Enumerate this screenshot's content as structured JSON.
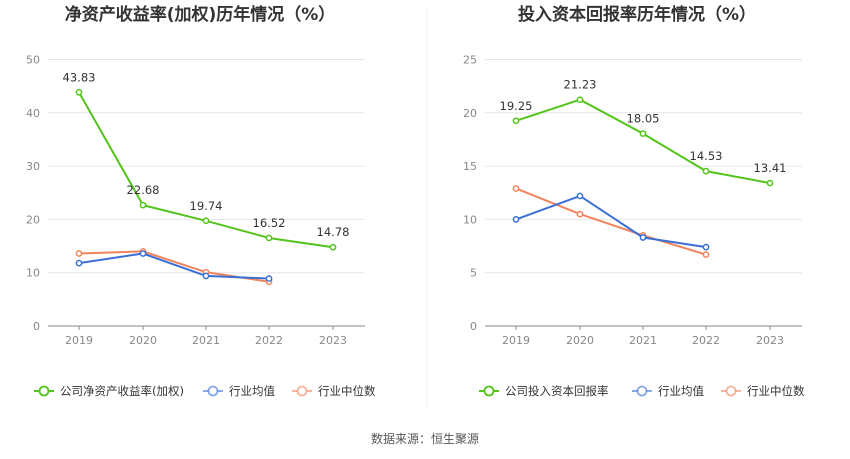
{
  "colors": {
    "company": "#52C41A",
    "avg": "#3B6FD6",
    "median": "#F0845C",
    "grid": "#E6E6E6",
    "axis": "#888888"
  },
  "chart_data": [
    {
      "type": "line",
      "title": "净资产收益率(加权)历年情况（%）",
      "categories": [
        "2019",
        "2020",
        "2021",
        "2022",
        "2023"
      ],
      "ylim": [
        0,
        50
      ],
      "yticks": [
        0,
        10,
        20,
        30,
        40,
        50
      ],
      "series": [
        {
          "name": "公司净资产收益率(加权)",
          "key": "company",
          "values": [
            43.83,
            22.68,
            19.74,
            16.52,
            14.78
          ],
          "labels": [
            "43.83",
            "22.68",
            "19.74",
            "16.52",
            "14.78"
          ]
        },
        {
          "name": "行业均值",
          "key": "avg",
          "values": [
            11.8,
            13.6,
            9.4,
            8.9,
            null
          ]
        },
        {
          "name": "行业中位数",
          "key": "median",
          "values": [
            13.6,
            14.0,
            10.1,
            8.3,
            null
          ]
        }
      ]
    },
    {
      "type": "line",
      "title": "投入资本回报率历年情况（%）",
      "categories": [
        "2019",
        "2020",
        "2021",
        "2022",
        "2023"
      ],
      "ylim": [
        0,
        25
      ],
      "yticks": [
        0,
        5,
        10,
        15,
        20,
        25
      ],
      "series": [
        {
          "name": "公司投入资本回报率",
          "key": "company",
          "values": [
            19.25,
            21.23,
            18.05,
            14.53,
            13.41
          ],
          "labels": [
            "19.25",
            "21.23",
            "18.05",
            "14.53",
            "13.41"
          ]
        },
        {
          "name": "行业均值",
          "key": "avg",
          "values": [
            10.0,
            12.2,
            8.3,
            7.4,
            null
          ]
        },
        {
          "name": "行业中位数",
          "key": "median",
          "values": [
            12.9,
            10.5,
            8.5,
            6.7,
            null
          ]
        }
      ]
    }
  ],
  "source": "数据来源：恒生聚源"
}
